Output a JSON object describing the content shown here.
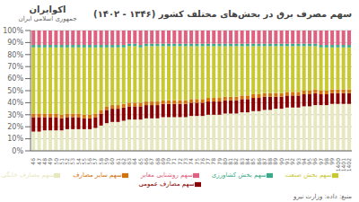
{
  "chart_data": {
    "type": "bar",
    "stacked": true,
    "title": "سهم مصرف برق در بخش‌های مختلف کشور (۱۳۴۶ - ۱۴۰۲)",
    "categories": [
      "46",
      "47",
      "48",
      "49",
      "50",
      "51",
      "52",
      "53",
      "54",
      "55",
      "56",
      "57",
      "58",
      "59",
      "60",
      "61",
      "62",
      "63",
      "64",
      "65",
      "66",
      "67",
      "68",
      "69",
      "70",
      "71",
      "72",
      "73",
      "74",
      "75",
      "76",
      "77",
      "78",
      "79",
      "80",
      "81",
      "82",
      "83",
      "84",
      "85",
      "86",
      "87",
      "88",
      "89",
      "90",
      "91",
      "92",
      "93",
      "94",
      "95",
      "96",
      "97",
      "98",
      "99",
      "1400",
      "1401",
      "1402"
    ],
    "series": [
      {
        "name": "سهم مصارف خانگی",
        "color": "#e8e8c0",
        "values": [
          16,
          16,
          17,
          17,
          17,
          17,
          18,
          18,
          18,
          18,
          18,
          19,
          21,
          23,
          24,
          24,
          25,
          26,
          26,
          26,
          27,
          27,
          27,
          28,
          28,
          28,
          28,
          28,
          29,
          29,
          29,
          30,
          30,
          30,
          31,
          31,
          31,
          32,
          32,
          33,
          33,
          34,
          34,
          35,
          35,
          36,
          36,
          36,
          37,
          37,
          38,
          38,
          38,
          39,
          39,
          39,
          39
        ]
      },
      {
        "name": "سهم مصارف عمومی",
        "color": "#8b0000",
        "values": [
          12,
          12,
          11,
          11,
          11,
          10,
          10,
          10,
          10,
          9,
          9,
          9,
          10,
          11,
          11,
          11,
          11,
          11,
          11,
          11,
          11,
          11,
          11,
          11,
          11,
          11,
          11,
          11,
          11,
          11,
          11,
          11,
          11,
          11,
          11,
          11,
          11,
          11,
          11,
          11,
          11,
          11,
          11,
          10,
          10,
          10,
          10,
          10,
          10,
          10,
          10,
          9,
          9,
          9,
          9,
          9,
          9
        ]
      },
      {
        "name": "سهم سایر مصارف",
        "color": "#d4720a",
        "values": [
          3,
          3,
          3,
          3,
          3,
          3,
          3,
          3,
          3,
          3,
          3,
          3,
          3,
          3,
          3,
          3,
          3,
          3,
          3,
          3,
          3,
          3,
          3,
          3,
          3,
          3,
          3,
          3,
          3,
          3,
          3,
          3,
          3,
          3,
          3,
          3,
          3,
          3,
          3,
          3,
          3,
          3,
          3,
          3,
          3,
          3,
          3,
          3,
          3,
          3,
          3,
          3,
          3,
          3,
          3,
          3,
          3
        ]
      },
      {
        "name": "سهم بخش صنعت",
        "color": "#c8c830",
        "values": [
          55,
          55,
          55,
          55,
          55,
          56,
          55,
          55,
          55,
          56,
          56,
          55,
          52,
          49,
          48,
          48,
          47,
          47,
          47,
          46,
          46,
          46,
          46,
          45,
          45,
          45,
          45,
          45,
          44,
          44,
          44,
          43,
          43,
          43,
          42,
          42,
          42,
          41,
          41,
          40,
          40,
          39,
          39,
          39,
          39,
          38,
          38,
          38,
          37,
          37,
          36,
          36,
          36,
          35,
          35,
          35,
          35
        ]
      },
      {
        "name": "سهم بخش کشاورزی",
        "color": "#3aaa88",
        "values": [
          2,
          2,
          2,
          2,
          2,
          2,
          2,
          2,
          2,
          2,
          2,
          2,
          2,
          2,
          2,
          2,
          2,
          2,
          2,
          2,
          2,
          2,
          2,
          2,
          2,
          2,
          2,
          2,
          2,
          2,
          2,
          2,
          2,
          2,
          2,
          2,
          2,
          2,
          2,
          2,
          2,
          2,
          2,
          2,
          2,
          2,
          2,
          2,
          2,
          2,
          2,
          2,
          2,
          2,
          2,
          2,
          2
        ]
      },
      {
        "name": "سهم روشنایی معابر",
        "color": "#e06080",
        "values": [
          12,
          12,
          12,
          12,
          12,
          12,
          12,
          12,
          12,
          12,
          12,
          12,
          12,
          12,
          12,
          12,
          12,
          11,
          11,
          12,
          11,
          11,
          11,
          11,
          11,
          11,
          11,
          11,
          11,
          11,
          11,
          11,
          11,
          11,
          11,
          11,
          11,
          11,
          11,
          11,
          11,
          11,
          11,
          11,
          11,
          11,
          11,
          11,
          11,
          11,
          11,
          12,
          12,
          12,
          12,
          12,
          12
        ]
      }
    ],
    "ylim": [
      0,
      100
    ],
    "yticks": [
      {
        "value": 0,
        "label": "0%"
      },
      {
        "value": 10,
        "label": "10%"
      },
      {
        "value": 20,
        "label": "20%"
      },
      {
        "value": 30,
        "label": "30%"
      },
      {
        "value": 40,
        "label": "40%"
      },
      {
        "value": 50,
        "label": "50%"
      },
      {
        "value": 60,
        "label": "60%"
      },
      {
        "value": 70,
        "label": "70%"
      },
      {
        "value": 80,
        "label": "80%"
      },
      {
        "value": 90,
        "label": "90%"
      },
      {
        "value": 100,
        "label": "100%"
      }
    ],
    "grid": true,
    "legend": "bottom",
    "annotations": [
      "اکوایران",
      "جمهوری اسلامی ایران",
      "منبع: داده: وزارت نیرو"
    ]
  }
}
